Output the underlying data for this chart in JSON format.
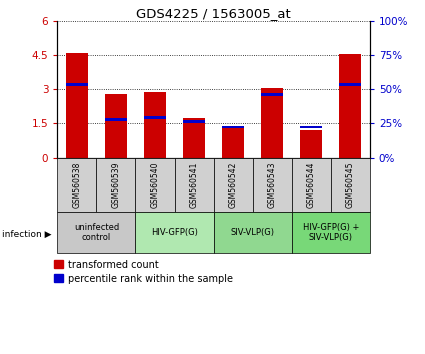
{
  "title": "GDS4225 / 1563005_at",
  "samples": [
    "GSM560538",
    "GSM560539",
    "GSM560540",
    "GSM560541",
    "GSM560542",
    "GSM560543",
    "GSM560544",
    "GSM560545"
  ],
  "red_values": [
    4.6,
    2.8,
    2.9,
    1.75,
    1.38,
    3.08,
    1.22,
    4.55
  ],
  "blue_heights": [
    0.13,
    0.13,
    0.13,
    0.13,
    0.08,
    0.13,
    0.13,
    0.13
  ],
  "blue_bottoms": [
    3.15,
    1.62,
    1.7,
    1.52,
    1.3,
    2.7,
    1.28,
    3.15
  ],
  "ylim_left": [
    0,
    6
  ],
  "ylim_right": [
    0,
    100
  ],
  "yticks_left": [
    0,
    1.5,
    3.0,
    4.5,
    6
  ],
  "ytick_labels_left": [
    "0",
    "1.5",
    "3",
    "4.5",
    "6"
  ],
  "yticks_right": [
    0,
    25,
    50,
    75,
    100
  ],
  "ytick_labels_right": [
    "0%",
    "25%",
    "50%",
    "75%",
    "100%"
  ],
  "infection_groups": [
    {
      "label": "uninfected\ncontrol",
      "start": 0,
      "end": 2,
      "color": "#c8c8c8"
    },
    {
      "label": "HIV-GFP(G)",
      "start": 2,
      "end": 4,
      "color": "#b0e8b0"
    },
    {
      "label": "SIV-VLP(G)",
      "start": 4,
      "end": 6,
      "color": "#90d890"
    },
    {
      "label": "HIV-GFP(G) +\nSIV-VLP(G)",
      "start": 6,
      "end": 8,
      "color": "#78d878"
    }
  ],
  "bar_color_red": "#cc0000",
  "bar_color_blue": "#0000cc",
  "bar_width": 0.55,
  "bg_plot": "#ffffff",
  "sample_bg": "#d0d0d0",
  "legend_items": [
    "transformed count",
    "percentile rank within the sample"
  ]
}
